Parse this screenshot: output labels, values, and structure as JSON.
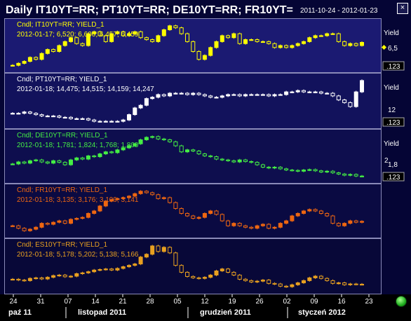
{
  "title": "Daily IT10YT=RR; PT10YT=RR; DE10YT=RR; FR10YT=",
  "date_range": "2011-10-24 - 2012-01-23",
  "close_label": "×",
  "x_axis": {
    "days": [
      "24",
      "31",
      "07",
      "14",
      "21",
      "28",
      "05",
      "12",
      "19",
      "26",
      "02",
      "09",
      "16",
      "23"
    ],
    "months": [
      "paź 11",
      "listopad 2011",
      "grudzień 2011",
      "styczeń 2012"
    ]
  },
  "panels": [
    {
      "legend_line1": "Cndl; IT10YT=RR; YIELD_1",
      "legend_line2": "2012-01-17; 6,520; 6,600; 6,457; 6,459",
      "axis_title": "Yield",
      "tick_label": "6,5",
      "scale_badge": ".123",
      "color": "#ffff00",
      "bg": "#1b1a72"
    },
    {
      "legend_line1": "Cndl; PT10YT=RR; YIELD_1",
      "legend_line2": "2012-01-18; 14,475; 14,515; 14,159; 14,247",
      "axis_title": "Yield",
      "tick_label": "12",
      "scale_badge": ".123",
      "color": "#ffffff",
      "bg": "#12125c"
    },
    {
      "legend_line1": "Cndl; DE10YT=RR; YIELD_1",
      "legend_line2": "2012-01-18; 1,781; 1,824; 1,768; 1,800",
      "axis_title": "Yield",
      "tick_label": "1,8",
      "tick_label_2": "2",
      "scale_badge": ".123",
      "color": "#44ee44",
      "bg": "#0e0e4e"
    },
    {
      "legend_line1": "Cndl; FR10YT=RR; YIELD_1",
      "legend_line2": "2012-01-18; 3,135; 3,176; 3,109; 3,141",
      "axis_title": "",
      "tick_label": "",
      "scale_badge": "",
      "color": "#ee6611",
      "bg": "#0a0a42"
    },
    {
      "legend_line1": "Cndl; ES10YT=RR; YIELD_1",
      "legend_line2": "2012-01-18; 5,178; 5,202; 5,138; 5,166",
      "axis_title": "",
      "tick_label": "",
      "scale_badge": "",
      "color": "#e8a020",
      "bg": "#080838"
    }
  ],
  "chart_data": [
    {
      "type": "candlestick",
      "series": [
        {
          "name": "IT10YT=RR",
          "values": [
            5.3,
            5.4,
            5.5,
            5.7,
            5.6,
            5.9,
            6.1,
            6.0,
            6.3,
            6.5,
            6.7,
            6.4,
            6.3,
            6.9,
            7.0,
            6.8,
            6.5,
            6.9,
            7.0,
            6.8,
            6.9,
            7.0,
            6.7,
            6.6,
            6.5,
            6.8,
            7.1,
            7.3,
            7.2,
            6.9,
            6.5,
            6.0,
            5.6,
            5.8,
            6.2,
            6.5,
            6.8,
            6.7,
            6.9,
            6.4,
            6.6,
            6.6,
            6.5,
            6.5,
            6.4,
            6.2,
            6.3,
            6.2,
            6.3,
            6.4,
            6.5,
            6.7,
            6.8,
            6.8,
            6.9,
            6.9,
            6.5,
            6.3,
            6.4,
            6.3,
            6.46
          ]
        }
      ]
    },
    {
      "type": "candlestick",
      "series": [
        {
          "name": "PT10YT=RR",
          "values": [
            11.8,
            11.8,
            11.9,
            11.8,
            11.7,
            11.6,
            11.6,
            11.6,
            11.5,
            11.5,
            11.4,
            11.4,
            11.4,
            11.3,
            11.2,
            11.2,
            11.2,
            11.2,
            11.2,
            11.3,
            11.7,
            12.2,
            12.4,
            12.9,
            13.0,
            13.2,
            13.1,
            13.3,
            13.3,
            13.3,
            13.2,
            13.3,
            13.2,
            13.1,
            13.0,
            13.0,
            13.1,
            13.2,
            13.2,
            13.1,
            13.2,
            13.2,
            13.2,
            13.2,
            13.1,
            13.2,
            13.2,
            13.4,
            13.4,
            13.5,
            13.4,
            13.4,
            13.4,
            13.3,
            13.3,
            13.1,
            12.8,
            12.6,
            12.3,
            13.4,
            14.25
          ]
        }
      ]
    },
    {
      "type": "candlestick",
      "series": [
        {
          "name": "DE10YT=RR",
          "values": [
            2.1,
            2.15,
            2.12,
            2.18,
            2.2,
            2.15,
            2.12,
            2.18,
            2.14,
            2.08,
            2.2,
            2.25,
            2.22,
            2.3,
            2.28,
            2.35,
            2.4,
            2.38,
            2.45,
            2.5,
            2.55,
            2.6,
            2.7,
            2.76,
            2.78,
            2.72,
            2.7,
            2.65,
            2.55,
            2.4,
            2.45,
            2.42,
            2.35,
            2.3,
            2.28,
            2.22,
            2.2,
            2.18,
            2.15,
            2.2,
            2.16,
            2.14,
            2.08,
            2.02,
            2.0,
            2.02,
            1.98,
            1.95,
            1.94,
            1.92,
            1.95,
            1.96,
            1.93,
            1.9,
            1.92,
            1.88,
            1.85,
            1.82,
            1.84,
            1.8,
            1.8
          ]
        }
      ]
    },
    {
      "type": "candlestick",
      "series": [
        {
          "name": "FR10YT=RR",
          "values": [
            3.05,
            3.0,
            2.95,
            2.98,
            3.02,
            3.1,
            3.08,
            3.12,
            3.15,
            3.1,
            3.18,
            3.2,
            3.22,
            3.3,
            3.35,
            3.45,
            3.55,
            3.58,
            3.6,
            3.62,
            3.65,
            3.7,
            3.75,
            3.72,
            3.68,
            3.6,
            3.62,
            3.52,
            3.4,
            3.3,
            3.25,
            3.2,
            3.22,
            3.3,
            3.35,
            3.28,
            3.15,
            3.05,
            3.1,
            3.05,
            3.02,
            3.0,
            3.05,
            3.08,
            3.0,
            3.02,
            3.1,
            3.15,
            3.25,
            3.3,
            3.35,
            3.38,
            3.35,
            3.3,
            3.25,
            3.1,
            3.05,
            3.1,
            3.15,
            3.12,
            3.14
          ]
        }
      ]
    },
    {
      "type": "candlestick",
      "series": [
        {
          "name": "ES10YT=RR",
          "values": [
            5.35,
            5.32,
            5.3,
            5.38,
            5.4,
            5.36,
            5.42,
            5.48,
            5.5,
            5.44,
            5.46,
            5.55,
            5.58,
            5.62,
            5.68,
            5.7,
            5.72,
            5.68,
            5.74,
            5.8,
            5.85,
            5.9,
            6.15,
            6.25,
            6.55,
            6.35,
            6.5,
            6.3,
            5.85,
            5.6,
            5.45,
            5.4,
            5.38,
            5.42,
            5.5,
            5.65,
            5.72,
            5.6,
            5.5,
            5.35,
            5.3,
            5.25,
            5.28,
            5.32,
            5.2,
            5.18,
            5.1,
            5.08,
            5.15,
            5.22,
            5.3,
            5.4,
            5.46,
            5.38,
            5.3,
            5.2,
            5.22,
            5.15,
            5.18,
            5.17,
            5.17
          ]
        }
      ]
    }
  ]
}
